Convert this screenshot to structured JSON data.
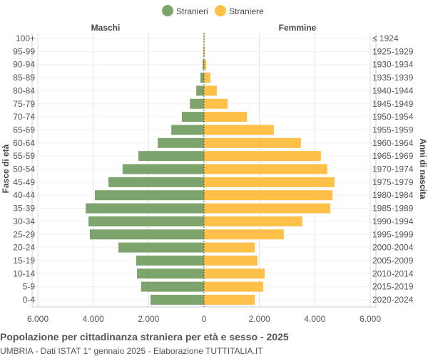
{
  "chart_data": {
    "type": "bar",
    "orientation": "horizontal-pyramid",
    "title": "Popolazione per cittadinanza straniera per età e sesso - 2025",
    "subtitle": "UMBRIA - Dati ISTAT 1° gennaio 2025 - Elaborazione TUTTITALIA.IT",
    "left_header": "Maschi",
    "right_header": "Femmine",
    "ylabel_left": "Fasce di età",
    "ylabel_right": "Anni di nascita",
    "xlim": [
      -6000,
      6000
    ],
    "x_ticks": [
      "6.000",
      "4.000",
      "2.000",
      "0",
      "2.000",
      "4.000",
      "6.000"
    ],
    "grid": true,
    "legend_position": "top",
    "categories": [
      "100+",
      "95-99",
      "90-94",
      "85-89",
      "80-84",
      "75-79",
      "70-74",
      "65-69",
      "60-64",
      "55-59",
      "50-54",
      "45-49",
      "40-44",
      "35-39",
      "30-34",
      "25-29",
      "20-24",
      "15-19",
      "10-14",
      "5-9",
      "0-4"
    ],
    "birth_years": [
      "≤ 1924",
      "1925-1929",
      "1930-1934",
      "1935-1939",
      "1940-1944",
      "1945-1949",
      "1950-1954",
      "1955-1959",
      "1960-1964",
      "1965-1969",
      "1970-1974",
      "1975-1979",
      "1980-1984",
      "1985-1989",
      "1990-1994",
      "1995-1999",
      "2000-2004",
      "2005-2009",
      "2010-2014",
      "2015-2019",
      "2020-2024"
    ],
    "series": [
      {
        "name": "Stranieri",
        "color": "#7ea46e",
        "values": [
          10,
          20,
          50,
          130,
          280,
          510,
          800,
          1180,
          1670,
          2370,
          2940,
          3450,
          3940,
          4270,
          4170,
          4120,
          3090,
          2450,
          2420,
          2270,
          1930
        ]
      },
      {
        "name": "Straniere",
        "color": "#ffc04a",
        "values": [
          20,
          30,
          80,
          230,
          460,
          850,
          1550,
          2520,
          3500,
          4220,
          4450,
          4710,
          4640,
          4560,
          3550,
          2880,
          1830,
          1930,
          2190,
          2140,
          1830
        ]
      }
    ]
  }
}
